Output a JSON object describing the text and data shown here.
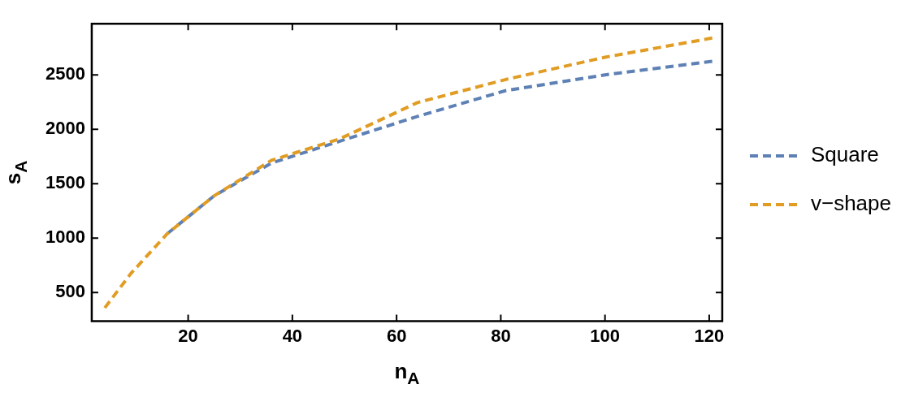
{
  "chart_data": {
    "type": "line",
    "xlabel": "n$_{A}$",
    "ylabel": "s$_{A}$",
    "x": [
      4,
      9,
      16,
      25,
      36,
      49,
      64,
      81,
      100,
      121
    ],
    "series": [
      {
        "name": "Square",
        "color": "#5e81b5",
        "values": [
          null,
          null,
          1041,
          1389,
          1690,
          1889,
          2118,
          2356,
          2500,
          2627
        ]
      },
      {
        "name": "v−shape",
        "color": "#e19c24",
        "values": [
          359,
          674,
          1041,
          1389,
          1715,
          1910,
          2245,
          2458,
          2662,
          2842
        ]
      }
    ],
    "xlim": [
      1.5,
      122.5
    ],
    "ylim": [
      236,
      2970
    ],
    "xticks": [
      20,
      40,
      60,
      80,
      100,
      120
    ],
    "yticks": [
      500,
      1000,
      1500,
      2000,
      2500
    ],
    "grid": false,
    "legend": "right",
    "line_style": "dashed",
    "marker": "none"
  }
}
